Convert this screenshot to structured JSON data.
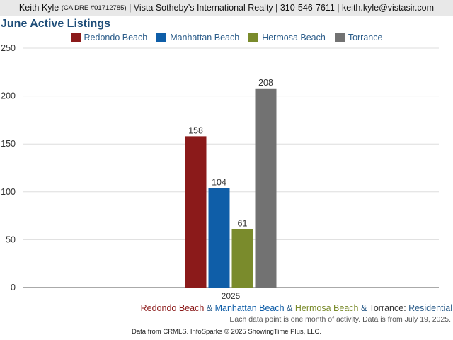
{
  "header": {
    "agent_name": "Keith Kyle",
    "license": "(CA DRE #01712785)",
    "company": "| Vista Sotheby’s International Realty | 310-546-7611 | keith.kyle@vistasir.com"
  },
  "colors": {
    "redondo": "#8b1a1a",
    "manhattan": "#0f5ea8",
    "hermosa": "#7a8b2c",
    "torrance": "#727272",
    "title": "#1f4e79"
  },
  "footer": {
    "areas": [
      {
        "label": "Redondo Beach",
        "color": "#8b1a1a"
      },
      {
        "label": "Manhattan Beach",
        "color": "#0f5ea8"
      },
      {
        "label": "Hermosa Beach",
        "color": "#7a8b2c"
      },
      {
        "label": "Torrance",
        "color": "#333333"
      }
    ],
    "separator": "&",
    "property_type_prefix": ":",
    "property_type": "Residential",
    "note": "Each data point is one month of activity. Data is from July 19, 2025.",
    "source": "Data from CRMLS. InfoSparks © 2025 ShowingTime Plus, LLC."
  },
  "chart_data": {
    "type": "bar",
    "title": "June Active Listings",
    "categories": [
      "2025"
    ],
    "series": [
      {
        "name": "Redondo Beach",
        "values": [
          158
        ],
        "color": "#8b1a1a"
      },
      {
        "name": "Manhattan Beach",
        "values": [
          104
        ],
        "color": "#0f5ea8"
      },
      {
        "name": "Hermosa Beach",
        "values": [
          61
        ],
        "color": "#7a8b2c"
      },
      {
        "name": "Torrance",
        "values": [
          208
        ],
        "color": "#727272"
      }
    ],
    "ylim": [
      0,
      250
    ],
    "yticks": [
      0,
      50,
      100,
      150,
      200,
      250
    ],
    "grid": true,
    "legend": "top-center",
    "xlabel": "",
    "ylabel": ""
  }
}
